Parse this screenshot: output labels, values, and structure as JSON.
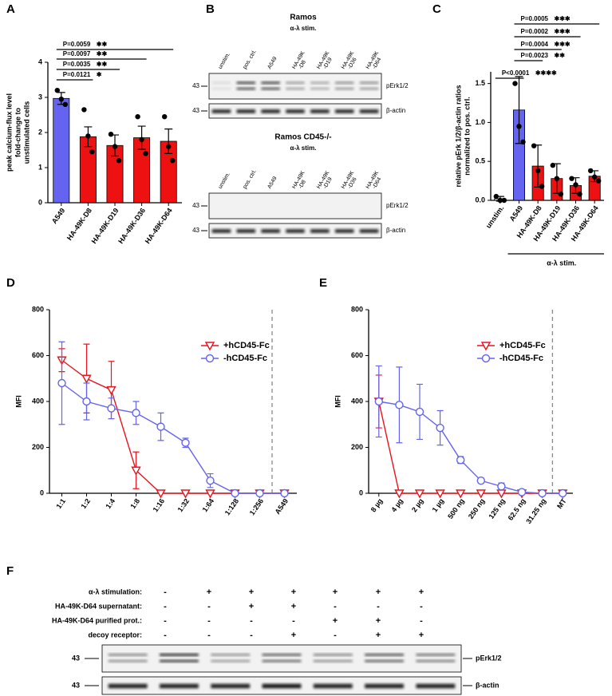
{
  "chart_data": [
    {
      "type": "bar",
      "label": "A",
      "ylabel": [
        "peak calcium-flux level",
        "fold-change to",
        "unstimulated cells"
      ],
      "categories": [
        "A549",
        "HA-49K-D8",
        "HA-49K-D19",
        "HA-49K-D36",
        "HA-49K-D64"
      ],
      "values": [
        2.97,
        1.88,
        1.63,
        1.85,
        1.75
      ],
      "errors": [
        0.17,
        0.28,
        0.3,
        0.33,
        0.35
      ],
      "points": [
        [
          3.2,
          2.95,
          2.8
        ],
        [
          2.65,
          1.9,
          1.45
        ],
        [
          1.95,
          1.6,
          1.2
        ],
        [
          2.45,
          1.8,
          1.4
        ],
        [
          2.45,
          1.6,
          1.2
        ]
      ],
      "colors": [
        "#6464f0",
        "#ee1111",
        "#ee1111",
        "#ee1111",
        "#ee1111"
      ],
      "ylim": [
        0,
        4
      ],
      "yticks": [
        0,
        1,
        2,
        3,
        4
      ],
      "annotations": [
        {
          "p": "P=0.0121",
          "stars": "✱"
        },
        {
          "p": "P=0.0035",
          "stars": "✱✱"
        },
        {
          "p": "P=0.0097",
          "stars": "✱✱"
        },
        {
          "p": "P=0.0059",
          "stars": "✱✱"
        }
      ]
    },
    {
      "type": "bar",
      "label": "C",
      "ylabel": [
        "relative pErk 1/2/β-actin ratios",
        "normalized to pos. ctrl."
      ],
      "categories": [
        "unstim.",
        "A549",
        "HA-49K-D8",
        "HA-49K-D19",
        "HA-49K-D36",
        "HA-49K-D64"
      ],
      "values": [
        0.02,
        1.16,
        0.44,
        0.28,
        0.19,
        0.31
      ],
      "errors": [
        0.03,
        0.43,
        0.27,
        0.19,
        0.1,
        0.07
      ],
      "points": [
        [
          0.05,
          0.0,
          0.0
        ],
        [
          1.5,
          0.95,
          0.75
        ],
        [
          0.7,
          0.38,
          0.18
        ],
        [
          0.45,
          0.28,
          0.08
        ],
        [
          0.28,
          0.2,
          0.08
        ],
        [
          0.38,
          0.3,
          0.25
        ]
      ],
      "colors": [
        "#ffffff",
        "#6464f0",
        "#ee1111",
        "#ee1111",
        "#ee1111",
        "#ee1111"
      ],
      "ylim": [
        0,
        1.65
      ],
      "yticks": [
        {
          "value": 0,
          "label": "0.0"
        },
        0.5,
        {
          "value": 1,
          "label": "1.0"
        },
        1.5
      ],
      "annotations": [
        {
          "p": "P<0.0001",
          "stars": "✱✱✱✱"
        },
        {
          "p": "P=0.0023",
          "stars": "✱✱"
        },
        {
          "p": "P=0.0004",
          "stars": "✱✱✱"
        },
        {
          "p": "P=0.0002",
          "stars": "✱✱✱"
        },
        {
          "p": "P=0.0005",
          "stars": "✱✱✱"
        }
      ],
      "group_label": "α-λ stim."
    },
    {
      "type": "line",
      "label": "D",
      "ylabel": "MFI",
      "categories": [
        "1:1",
        "1:2",
        "1:4",
        "1:8",
        "1:16",
        "1:32",
        "1:64",
        "1:128",
        "1:256",
        "A549"
      ],
      "series": [
        {
          "name": "+hCD45-Fc",
          "color": "#e8141e",
          "marker": "triangle-down",
          "values": [
            580,
            500,
            450,
            100,
            0,
            0,
            0,
            0,
            0,
            0
          ],
          "errors": [
            50,
            150,
            125,
            80,
            0,
            0,
            0,
            0,
            0,
            0
          ]
        },
        {
          "name": "-hCD45-Fc",
          "color": "#6464f0",
          "marker": "circle",
          "values": [
            480,
            400,
            370,
            350,
            290,
            220,
            55,
            0,
            0,
            0
          ],
          "errors": [
            180,
            80,
            45,
            50,
            60,
            20,
            30,
            0,
            0,
            0
          ]
        }
      ],
      "ylim": [
        0,
        800
      ],
      "yticks": [
        0,
        200,
        400,
        600,
        800
      ],
      "legend": "upper right"
    },
    {
      "type": "line",
      "label": "E",
      "ylabel": "MFI",
      "categories": [
        "8 µg",
        "4 µg",
        "2 µg",
        "1 µg",
        "500 ng",
        "250 ng",
        "125 ng",
        "62.5 ng",
        "31.25 ng",
        "MT"
      ],
      "series": [
        {
          "name": "+hCD45-Fc",
          "color": "#e8141e",
          "marker": "triangle-down",
          "values": [
            400,
            0,
            0,
            0,
            0,
            0,
            0,
            0,
            0,
            0
          ],
          "errors": [
            115,
            0,
            0,
            0,
            0,
            0,
            0,
            0,
            0,
            0
          ]
        },
        {
          "name": "-hCD45-Fc",
          "color": "#6464f0",
          "marker": "circle",
          "values": [
            400,
            385,
            355,
            285,
            145,
            55,
            30,
            5,
            0,
            0
          ],
          "errors": [
            155,
            165,
            120,
            75,
            15,
            10,
            15,
            5,
            0,
            0
          ]
        }
      ],
      "ylim": [
        0,
        800
      ],
      "yticks": [
        0,
        200,
        400,
        600,
        800
      ],
      "legend": "upper right"
    }
  ],
  "blots": {
    "B": {
      "label": "B",
      "panels": [
        {
          "title": "Ramos",
          "stim": "α-λ stim.",
          "lanes": [
            [
              "unstim."
            ],
            [
              "pos. ctrl."
            ],
            [
              "A549"
            ],
            [
              "HA-49K",
              "-D8"
            ],
            [
              "HA-49K",
              "-D19"
            ],
            [
              "HA-49K",
              "-D36"
            ],
            [
              "HA-49K",
              "-D64"
            ]
          ],
          "rows": [
            {
              "marker": "43",
              "name": "pErk1/2"
            },
            {
              "marker": "43",
              "name": "β-actin"
            }
          ]
        },
        {
          "title": "Ramos CD45-/-",
          "stim": "α-λ stim.",
          "lanes": [
            [
              "unstim."
            ],
            [
              "pos. ctrl."
            ],
            [
              "A549"
            ],
            [
              "HA-49K",
              "-D8"
            ],
            [
              "HA-49K",
              "-D19"
            ],
            [
              "HA-49K",
              "-D36"
            ],
            [
              "HA-49K",
              "-D64"
            ]
          ],
          "rows": [
            {
              "marker": "43",
              "name": "pErk1/2"
            },
            {
              "marker": "43",
              "name": "β-actin"
            }
          ]
        }
      ]
    },
    "F": {
      "label": "F",
      "conditions": [
        {
          "name": "α-λ stimulation:",
          "signs": [
            "-",
            "+",
            "+",
            "+",
            "+",
            "+",
            "+"
          ]
        },
        {
          "name": "HA-49K-D64 supernatant:",
          "signs": [
            "-",
            "-",
            "+",
            "+",
            "-",
            "-",
            "-"
          ]
        },
        {
          "name": "HA-49K-D64 purified prot.:",
          "signs": [
            "-",
            "-",
            "-",
            "-",
            "+",
            "+",
            "-"
          ]
        },
        {
          "name": "decoy receptor:",
          "signs": [
            "-",
            "-",
            "-",
            "+",
            "-",
            "+",
            "+"
          ]
        }
      ],
      "rows": [
        {
          "marker": "43",
          "name": "pErk1/2"
        },
        {
          "marker": "43",
          "name": "β-actin"
        }
      ]
    }
  }
}
